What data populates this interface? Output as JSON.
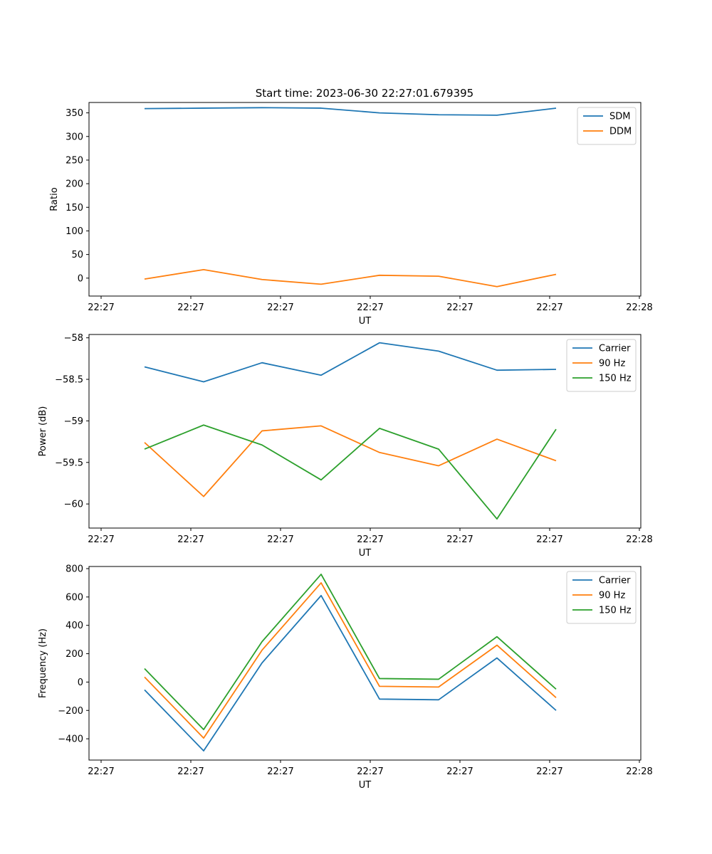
{
  "figure": {
    "title": "Start time: 2023-06-30 22:27:01.679395"
  },
  "x_tick_labels": [
    "22:27",
    "22:27",
    "22:27",
    "22:27",
    "22:27",
    "22:27",
    "22:28"
  ],
  "chart_data": [
    {
      "type": "line",
      "title": "Start time: 2023-06-30 22:27:01.679395",
      "xlabel": "UT",
      "ylabel": "Ratio",
      "ylim": [
        -38,
        372
      ],
      "yticks": [
        0,
        50,
        100,
        150,
        200,
        250,
        300,
        350
      ],
      "legend": "top-right",
      "series": [
        {
          "name": "SDM",
          "color": "#1f77b4",
          "values": [
            359,
            360,
            361,
            360,
            350,
            346,
            345,
            360
          ]
        },
        {
          "name": "DDM",
          "color": "#ff7f0e",
          "values": [
            -2,
            18,
            -3,
            -13,
            6,
            4,
            -18,
            8
          ]
        }
      ]
    },
    {
      "type": "line",
      "title": "",
      "xlabel": "UT",
      "ylabel": "Power (dB)",
      "ylim": [
        -60.29,
        -57.96
      ],
      "yticks": [
        -60.0,
        -59.5,
        -59.0,
        -58.5,
        -58.0
      ],
      "legend": "top-right",
      "series": [
        {
          "name": "Carrier",
          "color": "#1f77b4",
          "values": [
            -58.35,
            -58.53,
            -58.3,
            -58.45,
            -58.06,
            -58.16,
            -58.39,
            -58.38
          ]
        },
        {
          "name": "90 Hz",
          "color": "#ff7f0e",
          "values": [
            -59.26,
            -59.91,
            -59.12,
            -59.06,
            -59.38,
            -59.54,
            -59.22,
            -59.48
          ]
        },
        {
          "name": "150 Hz",
          "color": "#2ca02c",
          "values": [
            -59.34,
            -59.05,
            -59.29,
            -59.71,
            -59.09,
            -59.34,
            -60.18,
            -59.1
          ]
        }
      ]
    },
    {
      "type": "line",
      "title": "",
      "xlabel": "UT",
      "ylabel": "Frequency (Hz)",
      "ylim": [
        -550,
        815
      ],
      "yticks": [
        -400,
        -200,
        0,
        200,
        400,
        600,
        800
      ],
      "legend": "top-right",
      "series": [
        {
          "name": "Carrier",
          "color": "#1f77b4",
          "values": [
            -55,
            -485,
            135,
            610,
            -120,
            -125,
            170,
            -200
          ]
        },
        {
          "name": "90 Hz",
          "color": "#ff7f0e",
          "values": [
            35,
            -395,
            225,
            700,
            -30,
            -35,
            260,
            -110
          ]
        },
        {
          "name": "150 Hz",
          "color": "#2ca02c",
          "values": [
            95,
            -335,
            285,
            760,
            25,
            20,
            320,
            -50
          ]
        }
      ]
    }
  ]
}
